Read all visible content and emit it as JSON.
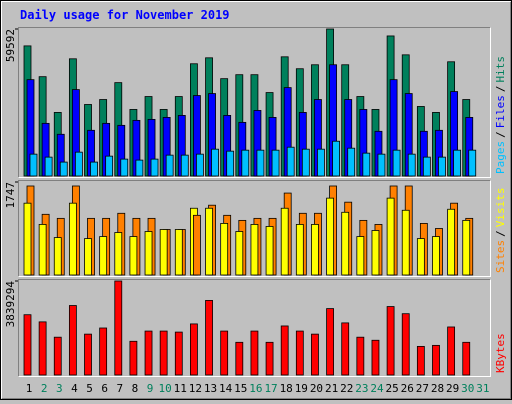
{
  "chart_data": [
    {
      "type": "bar",
      "title": "Daily usage for November 2019",
      "legend_separator": "/",
      "ylim": [
        0,
        59592
      ],
      "yticks": [
        59592
      ],
      "series": [
        {
          "name": "Pages",
          "color": "#00C0FF",
          "values": [
            8858,
            7650,
            5637,
            9664,
            5637,
            8053,
            6845,
            6442,
            6845,
            8456,
            8456,
            8858,
            10872,
            10066,
            10469,
            10469,
            10469,
            11677,
            10872,
            10872,
            14093,
            11274,
            9261,
            8858,
            10469,
            8858,
            7650,
            7650,
            10469,
            10469,
            null
          ]
        },
        {
          "name": "Files",
          "color": "#0000FF",
          "values": [
            39057,
            21340,
            16911,
            35031,
            18522,
            21340,
            20535,
            22548,
            22951,
            23756,
            24562,
            32615,
            33420,
            24562,
            21743,
            26575,
            23756,
            35836,
            25770,
            31004,
            45097,
            31004,
            26978,
            18119,
            39057,
            33420,
            18119,
            18522,
            34225,
            23756,
            null
          ]
        },
        {
          "name": "Hits",
          "color": "#00805C",
          "values": [
            52747,
            40265,
            25770,
            47513,
            28991,
            31004,
            37849,
            26978,
            32212,
            26978,
            32212,
            45500,
            47915,
            39460,
            41070,
            41070,
            33823,
            48318,
            43486,
            45097,
            59592,
            45097,
            32212,
            26978,
            56774,
            49123,
            28186,
            25770,
            46305,
            31004,
            null
          ]
        }
      ]
    },
    {
      "type": "bar",
      "legend_separator": "/",
      "ylim": [
        0,
        1747
      ],
      "yticks": [
        1747
      ],
      "series": [
        {
          "name": "Sites",
          "color": "#FF8000",
          "values": [
            1672,
            1140,
            1064,
            1672,
            1064,
            1064,
            1159,
            1064,
            1064,
            855,
            855,
            1121,
            1311,
            1121,
            1026,
            1064,
            1064,
            1539,
            1159,
            1159,
            1672,
            1368,
            1026,
            950,
            1672,
            1672,
            969,
            874,
            1349,
            1064,
            null
          ]
        },
        {
          "name": "Visits",
          "color": "#FFFF00",
          "values": [
            1349,
            950,
            703,
            1349,
            684,
            722,
            798,
            722,
            817,
            855,
            855,
            1254,
            1254,
            969,
            817,
            950,
            912,
            1254,
            950,
            950,
            1444,
            1178,
            722,
            836,
            1444,
            1216,
            684,
            722,
            1235,
            1026,
            null
          ]
        }
      ]
    },
    {
      "type": "bar",
      "ylim": [
        0,
        3839294
      ],
      "yticks": [
        3839294
      ],
      "categories": [
        "1",
        "2",
        "3",
        "4",
        "5",
        "6",
        "7",
        "8",
        "9",
        "10",
        "11",
        "12",
        "13",
        "14",
        "15",
        "16",
        "17",
        "18",
        "19",
        "20",
        "21",
        "22",
        "23",
        "24",
        "25",
        "26",
        "27",
        "28",
        "29",
        "30",
        "31"
      ],
      "category_colors": [
        "#000000",
        "#00805C",
        "#00805C",
        "#000000",
        "#000000",
        "#000000",
        "#000000",
        "#000000",
        "#00805C",
        "#00805C",
        "#000000",
        "#000000",
        "#000000",
        "#000000",
        "#000000",
        "#00805C",
        "#00805C",
        "#000000",
        "#000000",
        "#000000",
        "#000000",
        "#000000",
        "#00805C",
        "#00805C",
        "#000000",
        "#000000",
        "#000000",
        "#000000",
        "#000000",
        "#00805C",
        "#00805C"
      ],
      "series": [
        {
          "name": "KBytes",
          "color": "#FF0000",
          "values": [
            2462129,
            2170012,
            1544047,
            2837708,
            1669240,
            1919626,
            3839294,
            1377123,
            1794433,
            1794433,
            1752702,
            2086550,
            3046363,
            1794433,
            1335392,
            1794433,
            1335392,
            2003088,
            1794433,
            1669240,
            2712515,
            2128281,
            1544047,
            1418854,
            2795977,
            2503860,
            1168468,
            1210199,
            1961357,
            1335392,
            null
          ]
        }
      ]
    }
  ]
}
